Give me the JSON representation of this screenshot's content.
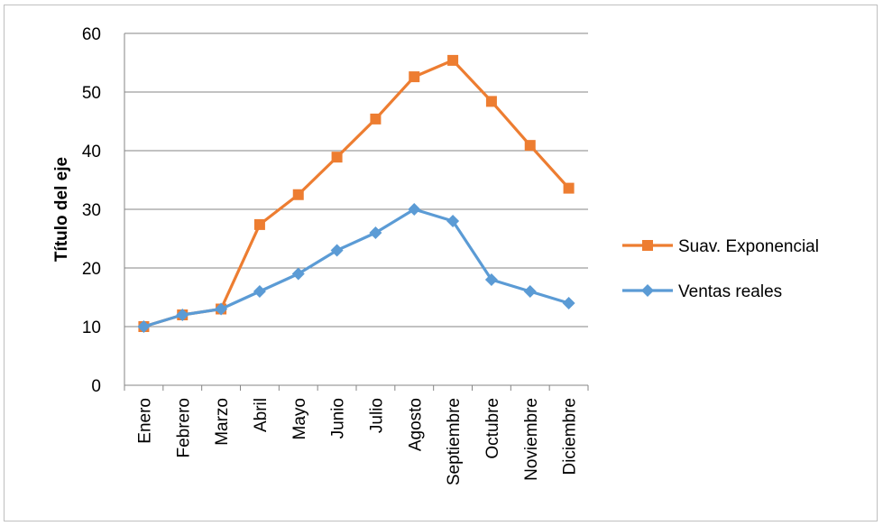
{
  "chart_data": {
    "type": "line",
    "title": "",
    "xlabel": "",
    "ylabel": "Título del eje",
    "categories": [
      "Enero",
      "Febrero",
      "Marzo",
      "Abril",
      "Mayo",
      "Junio",
      "Julio",
      "Agosto",
      "Septiembre",
      "Octubre",
      "Noviembre",
      "Diciembre"
    ],
    "ylim": [
      0,
      60
    ],
    "yticks": [
      0,
      10,
      20,
      30,
      40,
      50,
      60
    ],
    "grid": true,
    "legend_position": "right",
    "series": [
      {
        "name": "Suav. Exponencial",
        "color": "#ED7D31",
        "marker": "square",
        "values": [
          10,
          12,
          13,
          27.4,
          32.5,
          38.9,
          45.4,
          52.6,
          55.4,
          48.4,
          40.9,
          33.6
        ]
      },
      {
        "name": "Ventas reales",
        "color": "#5B9BD5",
        "marker": "diamond",
        "values": [
          10,
          12,
          13,
          16,
          19,
          23,
          26,
          30,
          28,
          18,
          16,
          14
        ]
      }
    ]
  }
}
